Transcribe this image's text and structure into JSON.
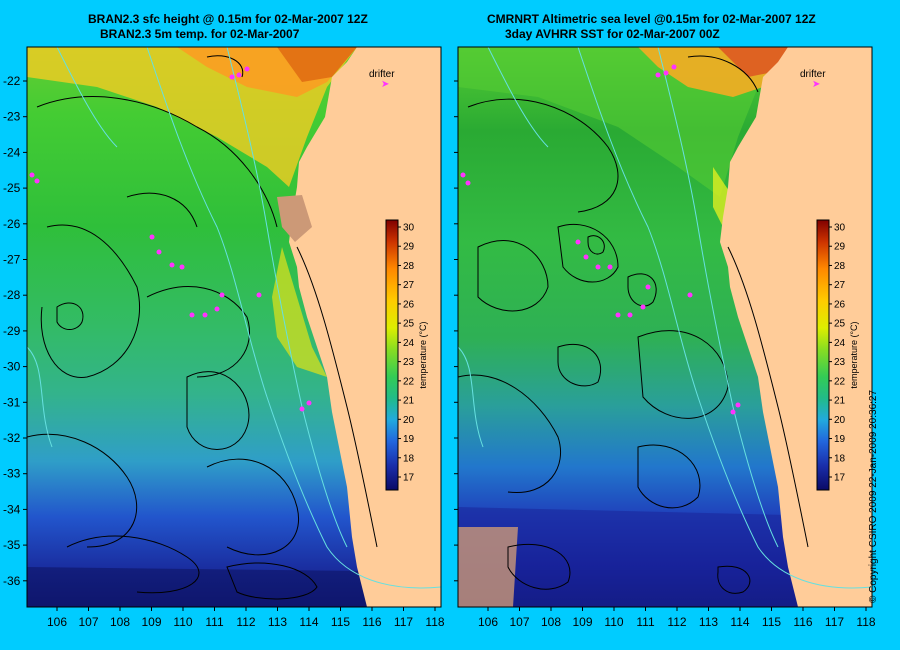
{
  "colors": {
    "background": "#00ccff",
    "land": "#ffcc99",
    "contour": "#000000",
    "isobath": "#66e0e0",
    "drifter": "#ff33ff"
  },
  "panels": [
    {
      "title_line1": "BRAN2.3 sfc height @ 0.15m for 02-Mar-2007 12Z",
      "title_line2": "BRAN2.3 5m temp. for 02-Mar-2007",
      "drifter_label": "drifter"
    },
    {
      "title_line1": "CMRNRT Altimetric sea level  @0.15m  for 02-Mar-2007 12Z",
      "title_line2": "3day AVHRR SST for 02-Mar-2007 00Z",
      "drifter_label": "drifter"
    }
  ],
  "axes": {
    "lon_ticks": [
      "106",
      "107",
      "108",
      "109",
      "110",
      "111",
      "112",
      "113",
      "114",
      "115",
      "116",
      "117",
      "118"
    ],
    "lat_ticks": [
      "-22",
      "-23",
      "-24",
      "-25",
      "-26",
      "-27",
      "-28",
      "-29",
      "-30",
      "-31",
      "-32",
      "-33",
      "-34",
      "-35",
      "-36"
    ]
  },
  "colorbar": {
    "label": "temperature (°C)",
    "ticks": [
      "30",
      "29",
      "28",
      "27",
      "26",
      "25",
      "24",
      "23",
      "22",
      "21",
      "20",
      "19",
      "18",
      "17"
    ]
  },
  "copyright": "© Copyright CSIRO 2009   22-Jan-2009 20:36:27"
}
